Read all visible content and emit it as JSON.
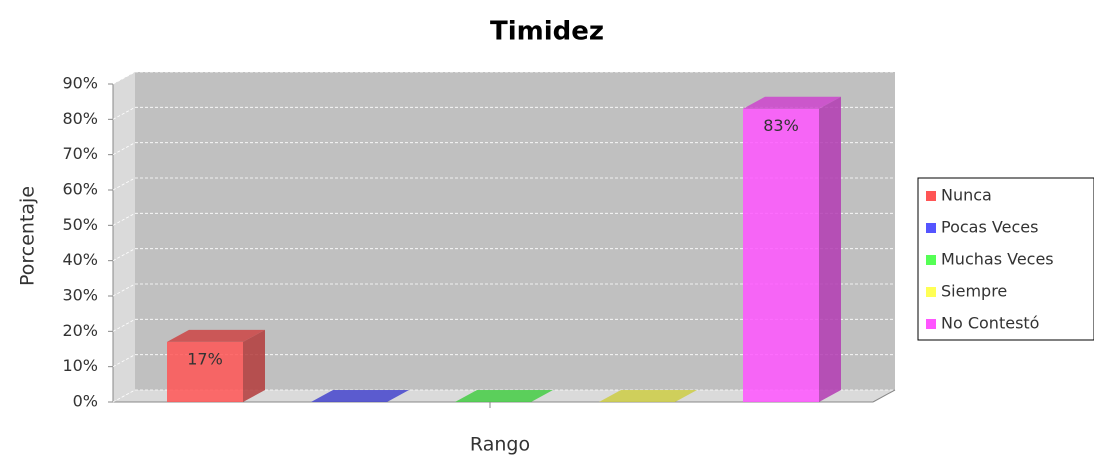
{
  "chart_data": {
    "type": "bar3d",
    "title": "Timidez",
    "xlabel": "Rango",
    "ylabel": "Porcentaje",
    "ylim": [
      0,
      90
    ],
    "yticks": [
      {
        "value": 0,
        "label": "0%"
      },
      {
        "value": 10,
        "label": "10%"
      },
      {
        "value": 20,
        "label": "20%"
      },
      {
        "value": 30,
        "label": "30%"
      },
      {
        "value": 40,
        "label": "40%"
      },
      {
        "value": 50,
        "label": "50%"
      },
      {
        "value": 60,
        "label": "60%"
      },
      {
        "value": 70,
        "label": "70%"
      },
      {
        "value": 80,
        "label": "80%"
      },
      {
        "value": 90,
        "label": "90%"
      }
    ],
    "grid": true,
    "legend": "right",
    "series": [
      {
        "name": "Nunca",
        "color": "#ff5555",
        "values": [
          17
        ],
        "value_labels": [
          "17%"
        ]
      },
      {
        "name": "Pocas Veces",
        "color": "#5555ff",
        "values": [
          0
        ]
      },
      {
        "name": "Muchas Veces",
        "color": "#55ff55",
        "values": [
          0
        ]
      },
      {
        "name": "Siempre",
        "color": "#ffff55",
        "values": [
          0
        ]
      },
      {
        "name": "No Contestó",
        "color": "#ff55ff",
        "values": [
          83
        ],
        "value_labels": [
          "83%"
        ]
      }
    ]
  }
}
